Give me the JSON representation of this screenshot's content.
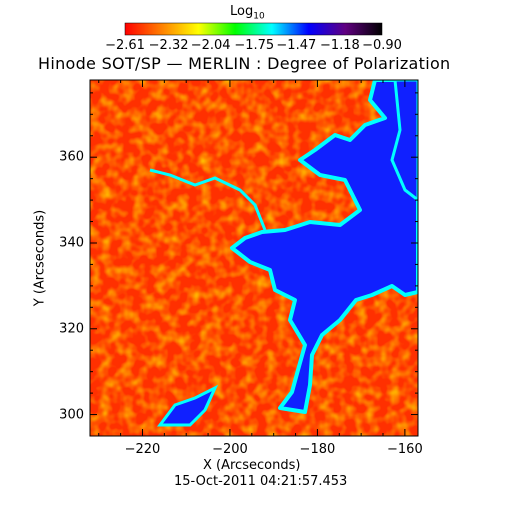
{
  "chart_data": {
    "type": "heatmap",
    "title": "Hinode SOT/SP — MERLIN : Degree of Polarization",
    "xlabel": "X (Arcseconds)",
    "ylabel": "Y (Arcseconds)",
    "xlim": [
      -232,
      -157
    ],
    "ylim": [
      295,
      378
    ],
    "x_ticks": [
      -220,
      -200,
      -180,
      -160
    ],
    "x_tick_labels": [
      "−220",
      "−200",
      "−180",
      "−160"
    ],
    "y_ticks": [
      300,
      320,
      340,
      360
    ],
    "y_tick_labels": [
      "300",
      "320",
      "340",
      "360"
    ],
    "timestamp": "15-Oct-2011 04:21:57.453",
    "colorbar": {
      "label_base": "Log",
      "label_sub": "10",
      "min": -2.61,
      "max": -0.9,
      "ticks": [
        -2.61,
        -2.32,
        -2.04,
        -1.75,
        -1.47,
        -1.18,
        -0.9
      ],
      "tick_labels": [
        "−2.61",
        "−2.32",
        "−2.04",
        "−1.75",
        "−1.47",
        "−1.18",
        "−0.90"
      ],
      "colors": [
        "#ff0000",
        "#ff8000",
        "#ffff00",
        "#00ff00",
        "#00ffff",
        "#0000ff",
        "#600080",
        "#000000"
      ]
    },
    "grid": false
  }
}
